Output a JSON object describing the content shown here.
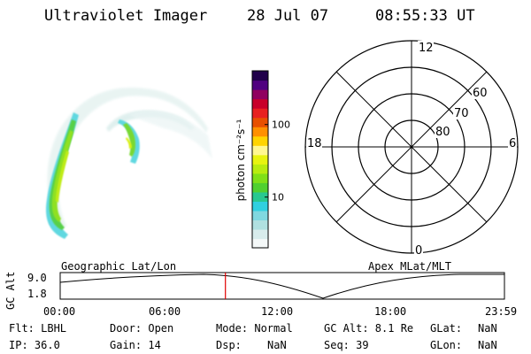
{
  "header": {
    "instrument": "Ultraviolet Imager",
    "date": "28 Jul 07",
    "time": "08:55:33 UT"
  },
  "colorbar": {
    "unit_label": "photon cm⁻²s⁻¹",
    "ticks": [
      "100",
      "10"
    ],
    "ticks_values": [
      100,
      10
    ],
    "scale": "log",
    "range": [
      2,
      550
    ],
    "colors": [
      "#f4f8f8",
      "#d8ecec",
      "#b0e0e0",
      "#80d8e0",
      "#30d0e0",
      "#28c890",
      "#50d030",
      "#80e018",
      "#b8ec10",
      "#e8f410",
      "#fff890",
      "#ffd400",
      "#ff9000",
      "#e85000",
      "#e82020",
      "#c8002a",
      "#900060",
      "#500080",
      "#20004a"
    ]
  },
  "polar_grid": {
    "mlt_labels": {
      "top": "12",
      "left": "18",
      "right": "6",
      "bottom": "0"
    },
    "lat_labels": [
      "60",
      "70",
      "80"
    ]
  },
  "timeline": {
    "label_left": "Geographic Lat/Lon",
    "label_right": "Apex MLat/MLT",
    "ylabel": "GC Alt",
    "y_ticks": [
      "9.0",
      "1.8"
    ],
    "x_ticks": [
      "00:00",
      "06:00",
      "12:00",
      "18:00",
      "23:59"
    ],
    "marker_time": "08:55:33",
    "marker_color": "#e00000"
  },
  "info": {
    "flt": "Flt: LBHL",
    "ip": "IP: 36.0",
    "door": "Door: Open",
    "gain": "Gain: 14",
    "mode": "Mode: Normal",
    "dsp_label": "Dsp:",
    "dsp_value": "NaN",
    "gc_alt": "GC Alt: 8.1 Re",
    "seq": "Seq: 39",
    "glat_label": "GLat:",
    "glat_value": "NaN",
    "glon_label": "GLon:",
    "glon_value": "NaN"
  }
}
